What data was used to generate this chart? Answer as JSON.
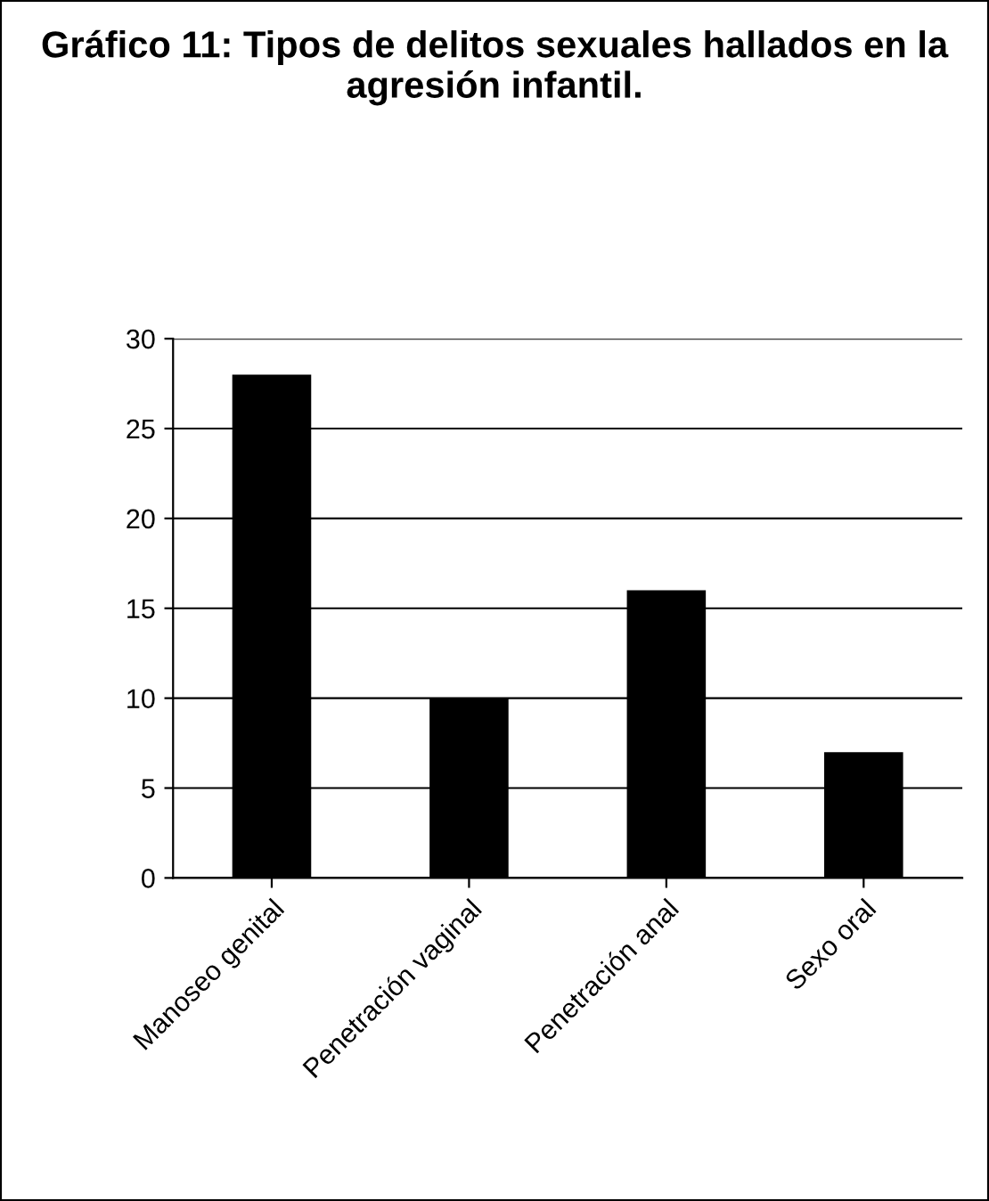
{
  "chart_data": {
    "type": "bar",
    "title": "Gráfico 11: Tipos de delitos sexuales hallados en la agresión infantil.",
    "categories": [
      "Manoseo genital",
      "Penetración vaginal",
      "Penetración anal",
      "Sexo oral"
    ],
    "values": [
      28,
      10,
      16,
      7
    ],
    "color": "#000000",
    "ylim": [
      0,
      30
    ],
    "yticks": [
      0,
      5,
      10,
      15,
      20,
      25,
      30
    ],
    "grid": "y",
    "legend": false
  }
}
